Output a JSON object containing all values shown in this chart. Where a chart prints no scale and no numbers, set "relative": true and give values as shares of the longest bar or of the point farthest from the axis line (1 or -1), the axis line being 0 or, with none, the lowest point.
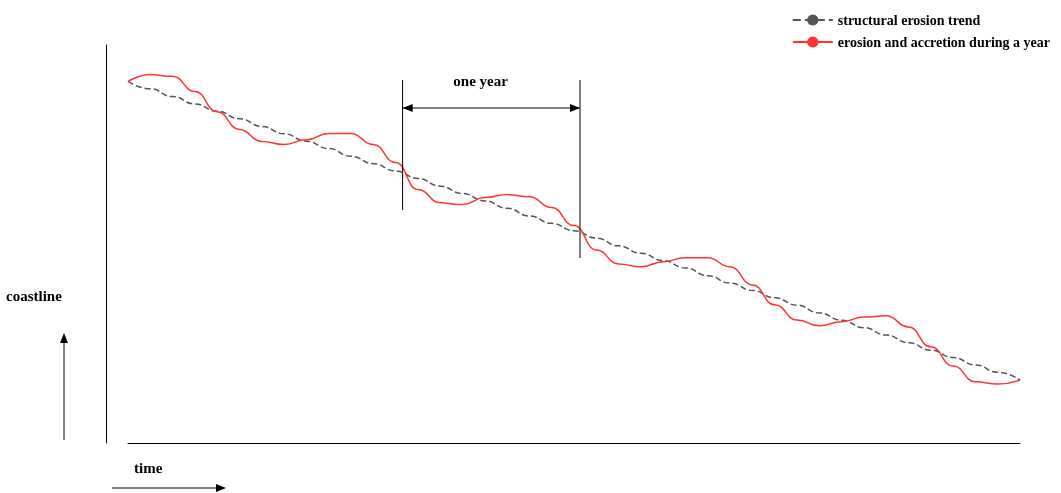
{
  "chart_data": {
    "type": "line",
    "relative": true,
    "xlabel": "time",
    "ylabel": "coastline",
    "categories": [
      null,
      null,
      null,
      null,
      null,
      null,
      null,
      null,
      null,
      null,
      null,
      null,
      null,
      null,
      null,
      null,
      null,
      null,
      null,
      null,
      null,
      null,
      null,
      null,
      null,
      null,
      null,
      null,
      null,
      null,
      null,
      null,
      null,
      null,
      null,
      null,
      null,
      null,
      null,
      null,
      null
    ],
    "series": [
      {
        "name": "structural erosion trend",
        "color": "#555555",
        "line_style": "dashed",
        "values": [
          0.981,
          0.961,
          0.94,
          0.92,
          0.9,
          0.88,
          0.859,
          0.839,
          0.819,
          0.799,
          0.778,
          0.758,
          0.738,
          0.718,
          0.697,
          0.677,
          0.657,
          0.637,
          0.616,
          0.596,
          0.576,
          0.556,
          0.535,
          0.515,
          0.495,
          0.475,
          0.454,
          0.434,
          0.414,
          0.394,
          0.374,
          0.353,
          0.333,
          0.313,
          0.293,
          0.272,
          0.252,
          0.232,
          0.212,
          0.192,
          0.171
        ]
      },
      {
        "name": "erosion and accretion during a year",
        "color": "#ff3333",
        "line_style": "solid",
        "values": [
          0.981,
          1.0,
          0.995,
          0.954,
          0.899,
          0.851,
          0.818,
          0.81,
          0.823,
          0.84,
          0.84,
          0.81,
          0.761,
          0.688,
          0.652,
          0.647,
          0.666,
          0.674,
          0.668,
          0.639,
          0.59,
          0.524,
          0.486,
          0.478,
          0.492,
          0.503,
          0.503,
          0.478,
          0.429,
          0.375,
          0.334,
          0.318,
          0.329,
          0.342,
          0.345,
          0.315,
          0.261,
          0.209,
          0.166,
          0.16,
          0.171
        ]
      }
    ],
    "annotations": [
      "one year"
    ],
    "legend": "top right",
    "grid": false,
    "marker": "none"
  }
}
